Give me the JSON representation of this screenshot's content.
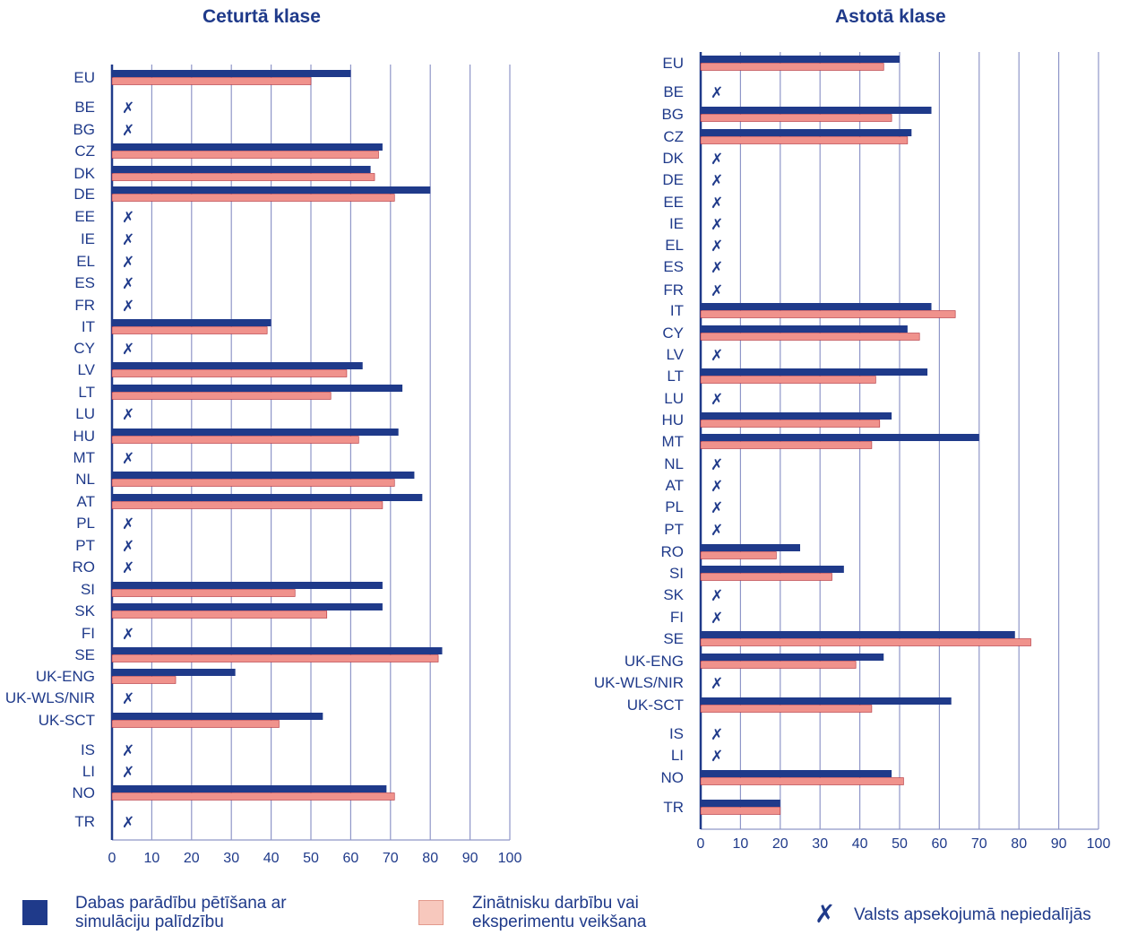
{
  "colors": {
    "simulation": "#1f3a8a",
    "experiments": "#f0928c",
    "experiments_legend": "#f7c8bd",
    "axis": "#1f3a8a",
    "grid": "#8f96c8",
    "text": "#1f3a8a"
  },
  "not_participating_mark": "✗",
  "chart_data": [
    {
      "type": "bar",
      "orientation": "horizontal",
      "title": "Ceturtā klase",
      "xlim": [
        0,
        100
      ],
      "xticks": [
        0,
        10,
        20,
        30,
        40,
        50,
        60,
        70,
        80,
        90,
        100
      ],
      "xtick_labels": [
        "0",
        "10",
        "20",
        "30",
        "40",
        "50",
        "60",
        "70",
        "80",
        "90",
        "100"
      ],
      "grid": true,
      "categories": [
        "EU",
        "BE",
        "BG",
        "CZ",
        "DK",
        "DE",
        "EE",
        "IE",
        "EL",
        "ES",
        "FR",
        "IT",
        "CY",
        "LV",
        "LT",
        "LU",
        "HU",
        "MT",
        "NL",
        "AT",
        "PL",
        "PT",
        "RO",
        "SI",
        "SK",
        "FI",
        "SE",
        "UK-ENG",
        "UK-WLS/NIR",
        "UK-SCT",
        "IS",
        "LI",
        "NO",
        "TR"
      ],
      "series": [
        {
          "name": "Dabas parādību pētīšana ar simulāciju palīdzību",
          "key": "simulation",
          "values": [
            60,
            null,
            null,
            68,
            65,
            80,
            null,
            null,
            null,
            null,
            null,
            40,
            null,
            63,
            73,
            null,
            72,
            null,
            76,
            78,
            null,
            null,
            null,
            68,
            68,
            null,
            83,
            31,
            null,
            53,
            null,
            null,
            69,
            null
          ]
        },
        {
          "name": "Zinātnisku darbību vai eksperimentu veikšana",
          "key": "experiments",
          "values": [
            50,
            null,
            null,
            67,
            66,
            71,
            null,
            null,
            null,
            null,
            null,
            39,
            null,
            59,
            55,
            null,
            62,
            null,
            71,
            68,
            null,
            null,
            null,
            46,
            54,
            null,
            82,
            16,
            null,
            42,
            null,
            null,
            71,
            null
          ]
        }
      ],
      "not_participating": [
        "BE",
        "BG",
        "EE",
        "IE",
        "EL",
        "ES",
        "FR",
        "CY",
        "LU",
        "MT",
        "PL",
        "PT",
        "RO",
        "FI",
        "UK-WLS/NIR",
        "IS",
        "LI",
        "TR"
      ]
    },
    {
      "type": "bar",
      "orientation": "horizontal",
      "title": "Astotā klase",
      "xlim": [
        0,
        100
      ],
      "xticks": [
        0,
        10,
        20,
        30,
        40,
        50,
        60,
        70,
        80,
        90,
        100
      ],
      "xtick_labels": [
        "0",
        "10",
        "20",
        "30",
        "40",
        "50",
        "60",
        "70",
        "80",
        "90",
        "100"
      ],
      "grid": true,
      "categories": [
        "EU",
        "BE",
        "BG",
        "CZ",
        "DK",
        "DE",
        "EE",
        "IE",
        "EL",
        "ES",
        "FR",
        "IT",
        "CY",
        "LV",
        "LT",
        "LU",
        "HU",
        "MT",
        "NL",
        "AT",
        "PL",
        "PT",
        "RO",
        "SI",
        "SK",
        "FI",
        "SE",
        "UK-ENG",
        "UK-WLS/NIR",
        "UK-SCT",
        "IS",
        "LI",
        "NO",
        "TR"
      ],
      "series": [
        {
          "name": "Dabas parādību pētīšana ar simulāciju palīdzību",
          "key": "simulation",
          "values": [
            50,
            null,
            58,
            53,
            null,
            null,
            null,
            null,
            null,
            null,
            null,
            58,
            52,
            null,
            57,
            null,
            48,
            70,
            null,
            null,
            null,
            null,
            25,
            36,
            null,
            null,
            79,
            46,
            null,
            63,
            null,
            null,
            48,
            20
          ]
        },
        {
          "name": "Zinātnisku darbību vai eksperimentu veikšana",
          "key": "experiments",
          "values": [
            46,
            null,
            48,
            52,
            null,
            null,
            null,
            null,
            null,
            null,
            null,
            64,
            55,
            null,
            44,
            null,
            45,
            43,
            null,
            null,
            null,
            null,
            19,
            33,
            null,
            null,
            83,
            39,
            null,
            43,
            null,
            null,
            51,
            20
          ]
        }
      ],
      "not_participating": [
        "BE",
        "DK",
        "DE",
        "EE",
        "IE",
        "EL",
        "ES",
        "FR",
        "LV",
        "LU",
        "NL",
        "AT",
        "PL",
        "PT",
        "SK",
        "FI",
        "UK-WLS/NIR",
        "IS",
        "LI"
      ]
    }
  ],
  "legend": {
    "simulation_label": "Dabas parādību pētīšana ar simulāciju palīdzību",
    "experiments_label": "Zinātnisku darbību vai eksperimentu veikšana",
    "not_participating_label": "Valsts apsekojumā nepiedalījās"
  }
}
